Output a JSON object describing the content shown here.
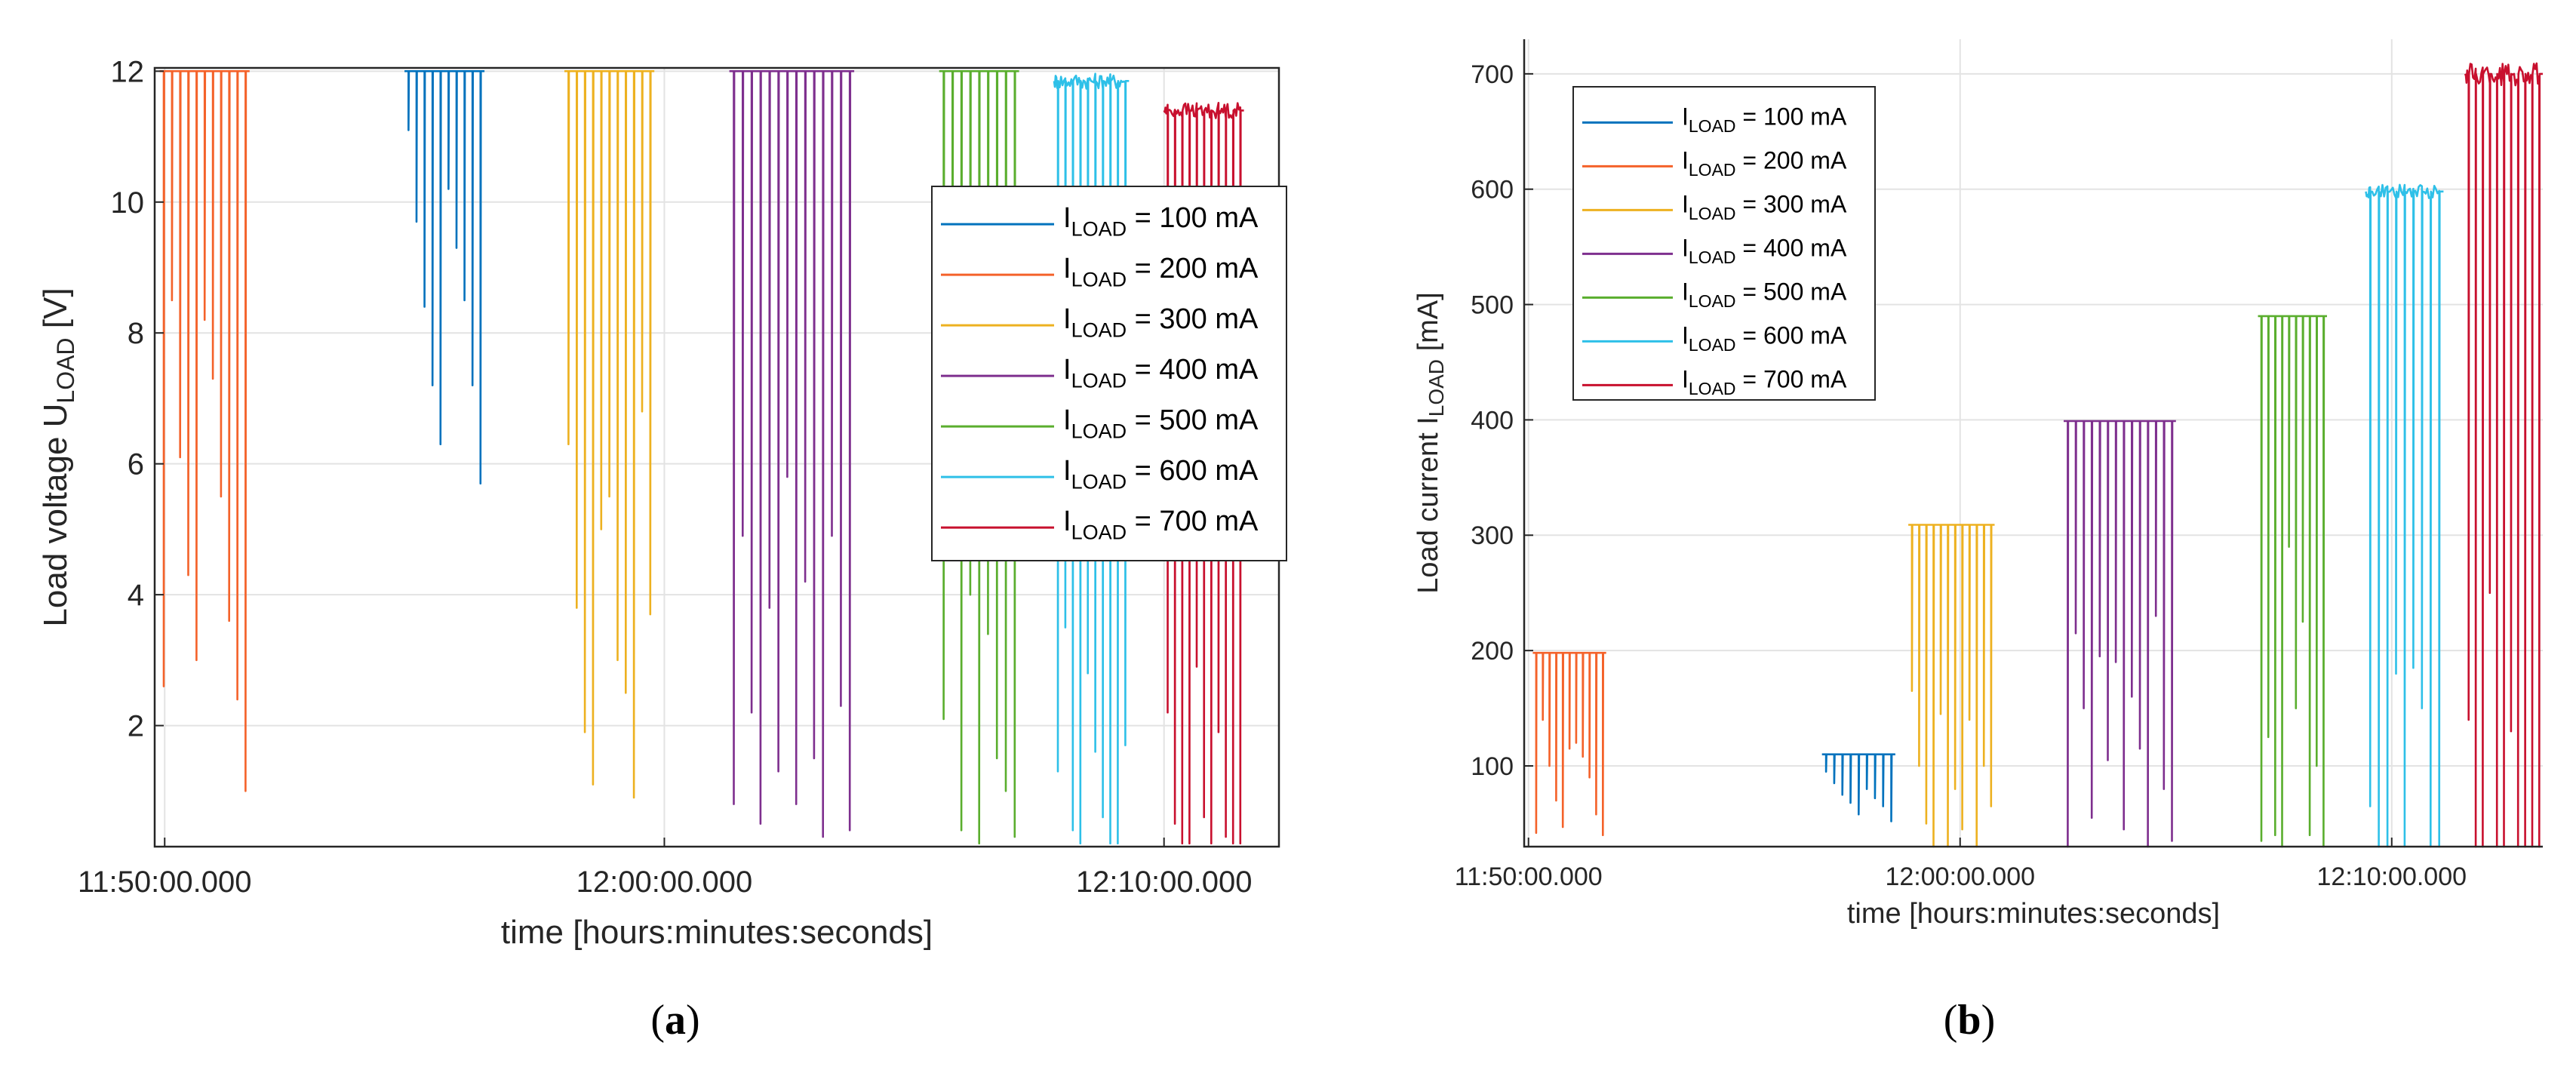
{
  "colors": {
    "s100": "#0072BD",
    "s200": "#F4622A",
    "s300": "#EDB120",
    "s400": "#7E2F8E",
    "s500": "#5AAE2E",
    "s600": "#2EC0E8",
    "s700": "#C8102E",
    "grid": "#e3e3e3",
    "axis": "#262626"
  },
  "panels": [
    {
      "label_open": "(",
      "label_letter": "a",
      "label_close": ")"
    },
    {
      "label_open": "(",
      "label_letter": "b",
      "label_close": ")"
    }
  ],
  "chart_data": [
    {
      "type": "line",
      "panel": "a",
      "xlabel": "time [hours:minutes:seconds]",
      "ylabel": {
        "main": "Load voltage U",
        "sub": "LOAD",
        "tail": " [V]"
      },
      "x_ticks": [
        "11:50:00.000",
        "12:00:00.000",
        "12:10:00.000"
      ],
      "x_tick_minutes": [
        0,
        10,
        20
      ],
      "xlim_minutes": [
        -0.2,
        22.3
      ],
      "y_ticks": [
        2,
        4,
        6,
        8,
        10,
        12
      ],
      "ylim": [
        0.15,
        12.05
      ],
      "grid": true,
      "legend_position": "right",
      "legend": [
        {
          "prefix": "I",
          "sub": "LOAD",
          "suffix": " = 100 mA"
        },
        {
          "prefix": "I",
          "sub": "LOAD",
          "suffix": " = 200 mA"
        },
        {
          "prefix": "I",
          "sub": "LOAD",
          "suffix": " = 300 mA"
        },
        {
          "prefix": "I",
          "sub": "LOAD",
          "suffix": " = 400 mA"
        },
        {
          "prefix": "I",
          "sub": "LOAD",
          "suffix": " = 500 mA"
        },
        {
          "prefix": "I",
          "sub": "LOAD",
          "suffix": " = 600 mA"
        },
        {
          "prefix": "I",
          "sub": "LOAD",
          "suffix": " = 700 mA"
        }
      ],
      "series": [
        {
          "name": "I LOAD = 100 mA",
          "color_key": "s100",
          "start_min": 4.8,
          "end_min": 6.4,
          "top": 12.0,
          "jitter": 0.0,
          "drops": [
            11.1,
            9.7,
            8.4,
            7.2,
            6.3,
            10.2,
            9.3,
            8.5,
            7.2,
            5.7
          ]
        },
        {
          "name": "I LOAD = 200 mA",
          "color_key": "s200",
          "start_min": -0.1,
          "end_min": 1.7,
          "top": 12.0,
          "jitter": 0.0,
          "drops": [
            2.6,
            8.5,
            6.1,
            4.3,
            3.0,
            8.2,
            7.3,
            5.5,
            3.6,
            2.4,
            1.0
          ]
        },
        {
          "name": "I LOAD = 300 mA",
          "color_key": "s300",
          "start_min": 8.0,
          "end_min": 9.8,
          "top": 12.0,
          "jitter": 0.0,
          "drops": [
            6.3,
            3.8,
            1.9,
            1.1,
            5.0,
            5.5,
            3.0,
            2.5,
            0.9,
            6.8,
            3.7
          ]
        },
        {
          "name": "I LOAD = 400 mA",
          "color_key": "s400",
          "start_min": 11.3,
          "end_min": 13.8,
          "top": 12.0,
          "jitter": 0.0,
          "drops": [
            0.8,
            4.9,
            2.2,
            0.5,
            3.8,
            1.3,
            5.8,
            0.8,
            4.2,
            1.5,
            0.3,
            4.9,
            2.3,
            0.4
          ]
        },
        {
          "name": "I LOAD = 500 mA",
          "color_key": "s500",
          "start_min": 15.5,
          "end_min": 17.1,
          "top": 12.0,
          "jitter": 0.0,
          "drops": [
            2.1,
            4.7,
            0.4,
            4.0,
            0.2,
            3.4,
            1.5,
            1.0,
            0.3
          ]
        },
        {
          "name": "I LOAD = 600 mA",
          "color_key": "s600",
          "start_min": 17.8,
          "end_min": 19.3,
          "top": 11.85,
          "jitter": 0.12,
          "drops": [
            1.3,
            3.5,
            0.4,
            0.2,
            2.8,
            1.6,
            0.6,
            0.2,
            0.2,
            1.7
          ]
        },
        {
          "name": "I LOAD = 700 mA",
          "color_key": "s700",
          "start_min": 20.0,
          "end_min": 21.6,
          "top": 11.4,
          "jitter": 0.12,
          "drops": [
            2.2,
            0.5,
            0.2,
            0.2,
            2.9,
            0.6,
            0.2,
            1.9,
            0.3,
            0.2,
            0.2
          ]
        }
      ]
    },
    {
      "type": "line",
      "panel": "b",
      "xlabel": "time [hours:minutes:seconds]",
      "ylabel": {
        "main": "Load current I",
        "sub": "LOAD",
        "tail": " [mA]"
      },
      "x_ticks": [
        "11:50:00.000",
        "12:00:00.000",
        "12:10:00.000"
      ],
      "x_tick_minutes": [
        0,
        10,
        20
      ],
      "xlim_minutes": [
        -0.1,
        23.5
      ],
      "y_ticks": [
        100,
        200,
        300,
        400,
        500,
        600,
        700
      ],
      "ylim": [
        30,
        730
      ],
      "grid": true,
      "legend_position": "top-left",
      "legend": [
        {
          "prefix": "I",
          "sub": "LOAD",
          "suffix": " = 100 mA"
        },
        {
          "prefix": "I",
          "sub": "LOAD",
          "suffix": " = 200 mA"
        },
        {
          "prefix": "I",
          "sub": "LOAD",
          "suffix": " = 300 mA"
        },
        {
          "prefix": "I",
          "sub": "LOAD",
          "suffix": " = 400 mA"
        },
        {
          "prefix": "I",
          "sub": "LOAD",
          "suffix": " = 500 mA"
        },
        {
          "prefix": "I",
          "sub": "LOAD",
          "suffix": " = 600 mA"
        },
        {
          "prefix": "I",
          "sub": "LOAD",
          "suffix": " = 700 mA"
        }
      ],
      "series": [
        {
          "name": "I LOAD = 100 mA",
          "color_key": "s100",
          "start_min": 6.8,
          "end_min": 8.5,
          "top": 110,
          "jitter": 0,
          "drops": [
            95,
            85,
            75,
            68,
            58,
            80,
            72,
            65,
            52
          ]
        },
        {
          "name": "I LOAD = 200 mA",
          "color_key": "s200",
          "start_min": 0.1,
          "end_min": 1.8,
          "top": 198,
          "jitter": 0,
          "drops": [
            42,
            140,
            100,
            70,
            47,
            115,
            120,
            108,
            90,
            58,
            40
          ]
        },
        {
          "name": "I LOAD = 300 mA",
          "color_key": "s300",
          "start_min": 8.8,
          "end_min": 10.8,
          "top": 309,
          "jitter": 0,
          "drops": [
            165,
            100,
            50,
            30,
            145,
            30,
            80,
            45,
            140,
            30,
            100,
            65
          ]
        },
        {
          "name": "I LOAD = 400 mA",
          "color_key": "s400",
          "start_min": 12.4,
          "end_min": 15.0,
          "top": 399,
          "jitter": 0,
          "drops": [
            30,
            215,
            150,
            55,
            195,
            105,
            190,
            45,
            160,
            115,
            30,
            230,
            80,
            35
          ]
        },
        {
          "name": "I LOAD = 500 mA",
          "color_key": "s500",
          "start_min": 16.9,
          "end_min": 18.5,
          "top": 490,
          "jitter": 0,
          "drops": [
            35,
            125,
            40,
            30,
            290,
            150,
            225,
            40,
            100,
            30
          ]
        },
        {
          "name": "I LOAD = 600 mA",
          "color_key": "s600",
          "start_min": 19.4,
          "end_min": 21.2,
          "top": 598,
          "jitter": 6,
          "drops": [
            65,
            30,
            30,
            180,
            30,
            185,
            150,
            30,
            30
          ]
        },
        {
          "name": "I LOAD = 700 mA",
          "color_key": "s700",
          "start_min": 21.7,
          "end_min": 23.5,
          "top": 700,
          "jitter": 10,
          "drops": [
            140,
            30,
            30,
            250,
            30,
            30,
            130,
            30,
            30,
            30,
            30
          ]
        }
      ]
    }
  ]
}
